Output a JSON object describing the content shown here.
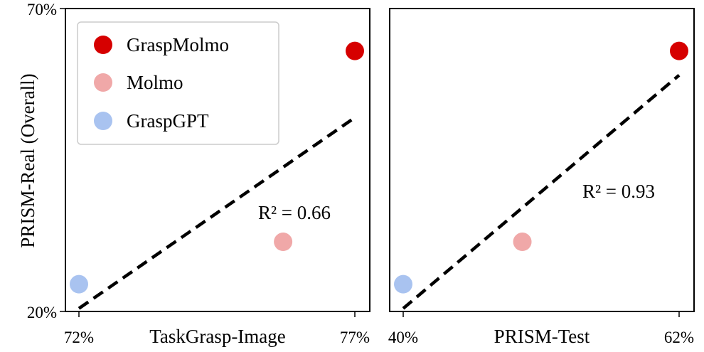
{
  "figure": {
    "shared_ylabel": "PRISM-Real (Overall)"
  },
  "legend": {
    "entries": [
      {
        "name": "GraspMolmo",
        "color": "#d60000"
      },
      {
        "name": "Molmo",
        "color": "#f0a8a8"
      },
      {
        "name": "GraspGPT",
        "color": "#a9c3f0"
      }
    ]
  },
  "chart_data": [
    {
      "type": "scatter",
      "xlabel": "TaskGrasp-Image",
      "ylabel": "PRISM-Real (Overall)",
      "xlim": [
        72,
        77
      ],
      "ylim": [
        20,
        70
      ],
      "xticks": [
        "72%",
        "77%"
      ],
      "yticks": [
        "20%",
        "70%"
      ],
      "series": [
        {
          "name": "GraspMolmo",
          "color": "#d60000",
          "x": 77,
          "y": 63
        },
        {
          "name": "Molmo",
          "color": "#f0a8a8",
          "x": 75.7,
          "y": 31.5
        },
        {
          "name": "GraspGPT",
          "color": "#a9c3f0",
          "x": 72,
          "y": 24.5
        }
      ],
      "fit_line": {
        "x": [
          72,
          77
        ],
        "y": [
          20.5,
          52
        ],
        "style": "dashed"
      },
      "annotation": "R² = 0.66",
      "grid": false,
      "legend_position": "upper-left"
    },
    {
      "type": "scatter",
      "xlabel": "PRISM-Test",
      "ylabel": "",
      "xlim": [
        40,
        62
      ],
      "ylim": [
        20,
        70
      ],
      "xticks": [
        "40%",
        "62%"
      ],
      "yticks": [],
      "series": [
        {
          "name": "GraspMolmo",
          "color": "#d60000",
          "x": 62,
          "y": 63
        },
        {
          "name": "Molmo",
          "color": "#f0a8a8",
          "x": 49.5,
          "y": 31.5
        },
        {
          "name": "GraspGPT",
          "color": "#a9c3f0",
          "x": 40,
          "y": 24.5
        }
      ],
      "fit_line": {
        "x": [
          40,
          62
        ],
        "y": [
          20.5,
          59
        ],
        "style": "dashed"
      },
      "annotation": "R² = 0.93",
      "grid": false
    }
  ]
}
